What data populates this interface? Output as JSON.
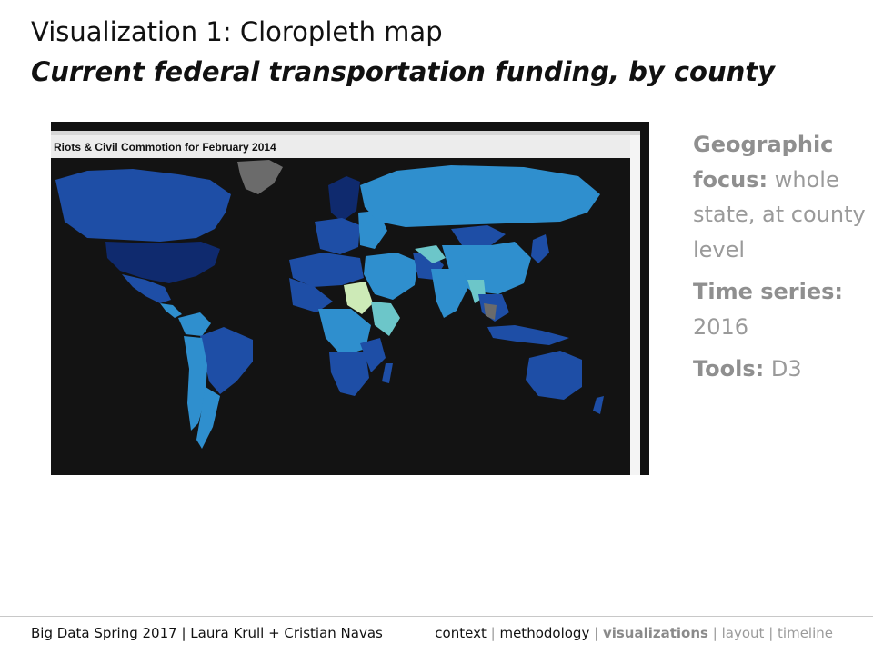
{
  "slide": {
    "title": "Visualization 1: Cloropleth map",
    "subtitle": "Current federal transportation funding, by county"
  },
  "map": {
    "header": "Riots & Civil Commotion for February 2014",
    "colors": {
      "ocean": "#131313",
      "dark": "#0f2a6e",
      "mid": "#1e4ea6",
      "light": "#2f8fce",
      "pale": "#6cc6c9",
      "highlight": "#cdeab7",
      "gray": "#6b6b6b"
    }
  },
  "details": [
    {
      "label": "Geographic focus:",
      "value": "whole state, at county level"
    },
    {
      "label": "Time series:",
      "value": "2016"
    },
    {
      "label": "Tools:",
      "value": "D3"
    }
  ],
  "footer": {
    "left": "Big Data Spring 2017 | Laura Krull + Cristian Navas",
    "nav": [
      {
        "label": "context",
        "state": "normal"
      },
      {
        "label": "methodology",
        "state": "normal"
      },
      {
        "label": "visualizations",
        "state": "active"
      },
      {
        "label": "layout",
        "state": "muted"
      },
      {
        "label": "timeline",
        "state": "muted"
      }
    ]
  }
}
